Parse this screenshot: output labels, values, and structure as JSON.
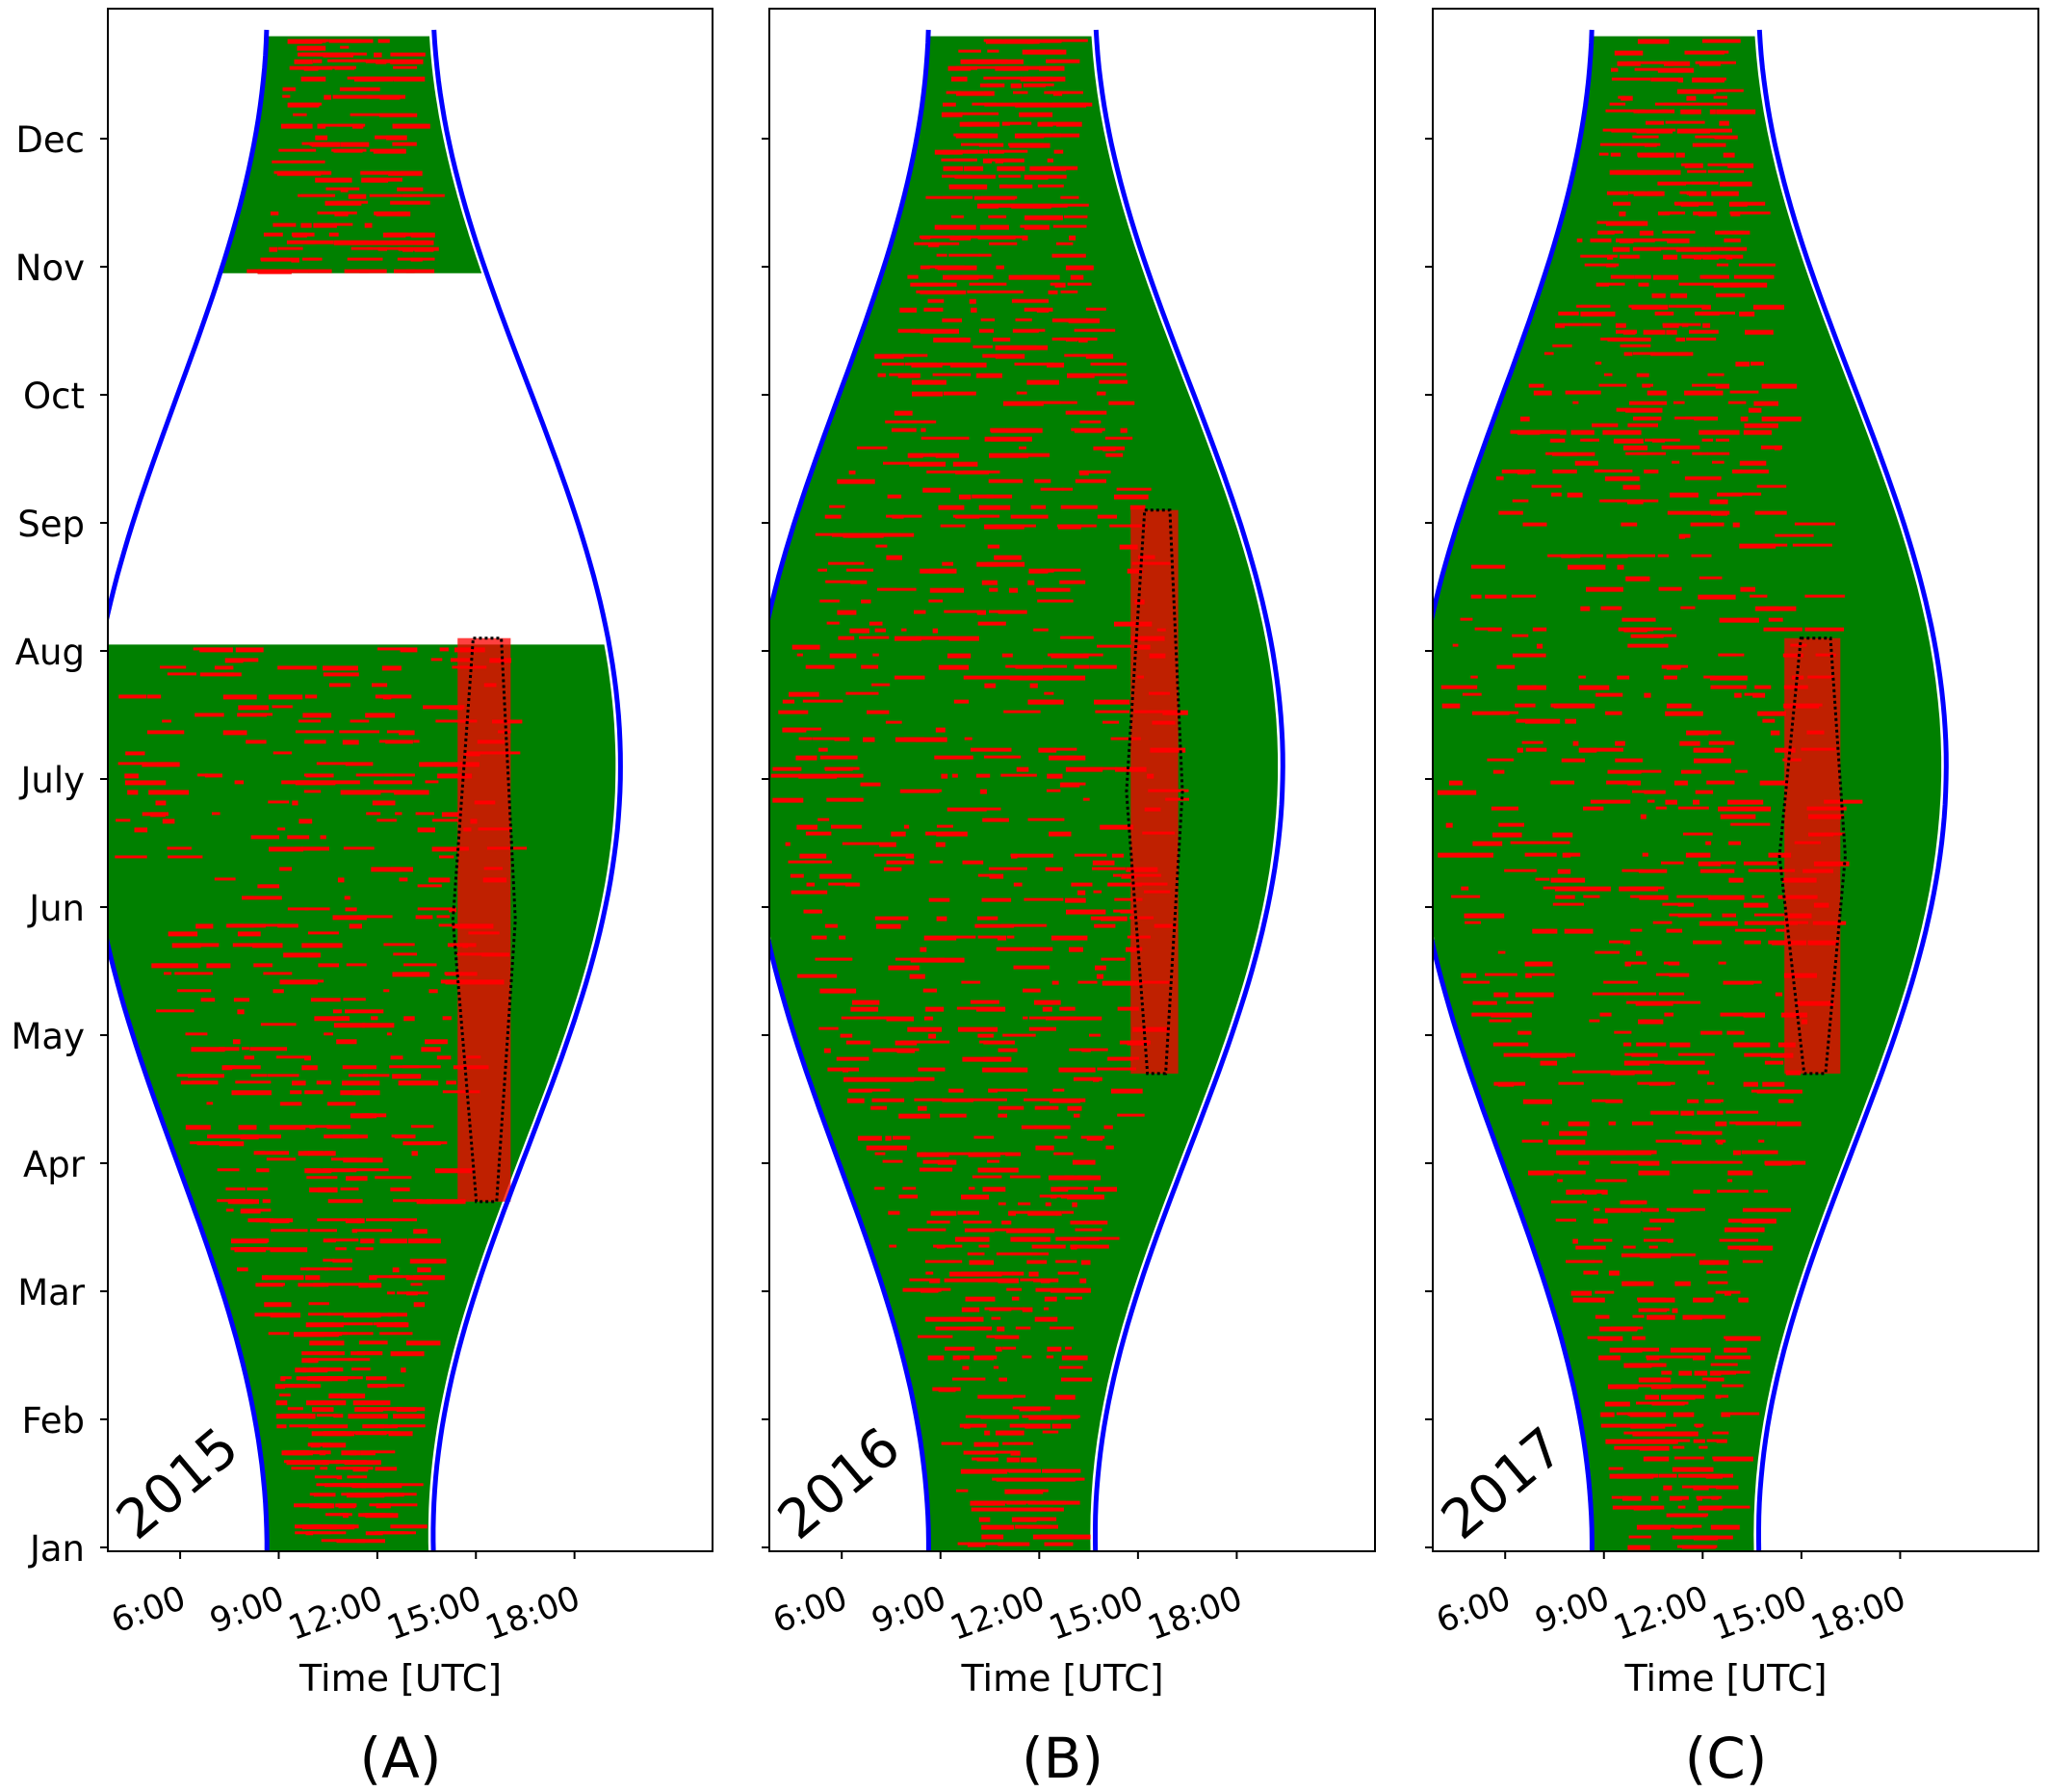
{
  "chart_data": [
    {
      "type": "scatter",
      "year_label": "2015",
      "panel_label": "(A)",
      "xlabel": "Time [UTC]",
      "x_ticks": [
        "6:00",
        "9:00",
        "12:00",
        "15:00",
        "18:00"
      ],
      "y_ticks": [
        "Jan",
        "Feb",
        "Mar",
        "Apr",
        "May",
        "Jun",
        "July",
        "Aug",
        "Sep",
        "Oct",
        "Nov",
        "Dec"
      ],
      "xlim": [
        "3:48",
        "22:12"
      ],
      "colors": {
        "observed": "#008000",
        "flagged": "#ff0000",
        "daylight_boundary": "#0000ff",
        "cluster_outline": "#000000"
      },
      "coverage": [
        {
          "from": "Jan",
          "to": "Aug",
          "start": "3:00",
          "end": "19:45"
        },
        {
          "from": "Nov",
          "to": "Dec",
          "start": "8:00",
          "end": "15:45"
        }
      ],
      "cluster": {
        "from": "Apr",
        "to": "Aug",
        "center": "15:15",
        "half_width_hours": 0.95
      }
    },
    {
      "type": "scatter",
      "year_label": "2016",
      "panel_label": "(B)",
      "xlabel": "Time [UTC]",
      "x_ticks": [
        "6:00",
        "9:00",
        "12:00",
        "15:00",
        "18:00"
      ],
      "y_ticks": [
        "Jan",
        "Feb",
        "Mar",
        "Apr",
        "May",
        "Jun",
        "July",
        "Aug",
        "Sep",
        "Oct",
        "Nov",
        "Dec"
      ],
      "xlim": [
        "3:48",
        "22:12"
      ],
      "colors": {
        "observed": "#008000",
        "flagged": "#ff0000",
        "daylight_boundary": "#0000ff",
        "cluster_outline": "#000000"
      },
      "coverage": [
        {
          "from": "Jan",
          "to": "Dec",
          "start": "3:00",
          "end": "19:45"
        }
      ],
      "cluster": {
        "from": "May",
        "to": "Sep",
        "center": "15:30",
        "half_width_hours": 0.85
      }
    },
    {
      "type": "scatter",
      "year_label": "2017",
      "panel_label": "(C)",
      "xlabel": "Time [UTC]",
      "x_ticks": [
        "6:00",
        "9:00",
        "12:00",
        "15:00",
        "18:00"
      ],
      "y_ticks": [
        "Jan",
        "Feb",
        "Mar",
        "Apr",
        "May",
        "Jun",
        "July",
        "Aug",
        "Sep",
        "Oct",
        "Nov",
        "Dec"
      ],
      "xlim": [
        "3:48",
        "22:12"
      ],
      "colors": {
        "observed": "#008000",
        "flagged": "#ff0000",
        "daylight_boundary": "#0000ff",
        "cluster_outline": "#000000"
      },
      "coverage": [
        {
          "from": "Jan",
          "to": "Dec",
          "start": "3:00",
          "end": "19:45"
        }
      ],
      "cluster": {
        "from": "May",
        "to": "Aug",
        "center": "15:20",
        "half_width_hours": 1.0
      }
    }
  ]
}
